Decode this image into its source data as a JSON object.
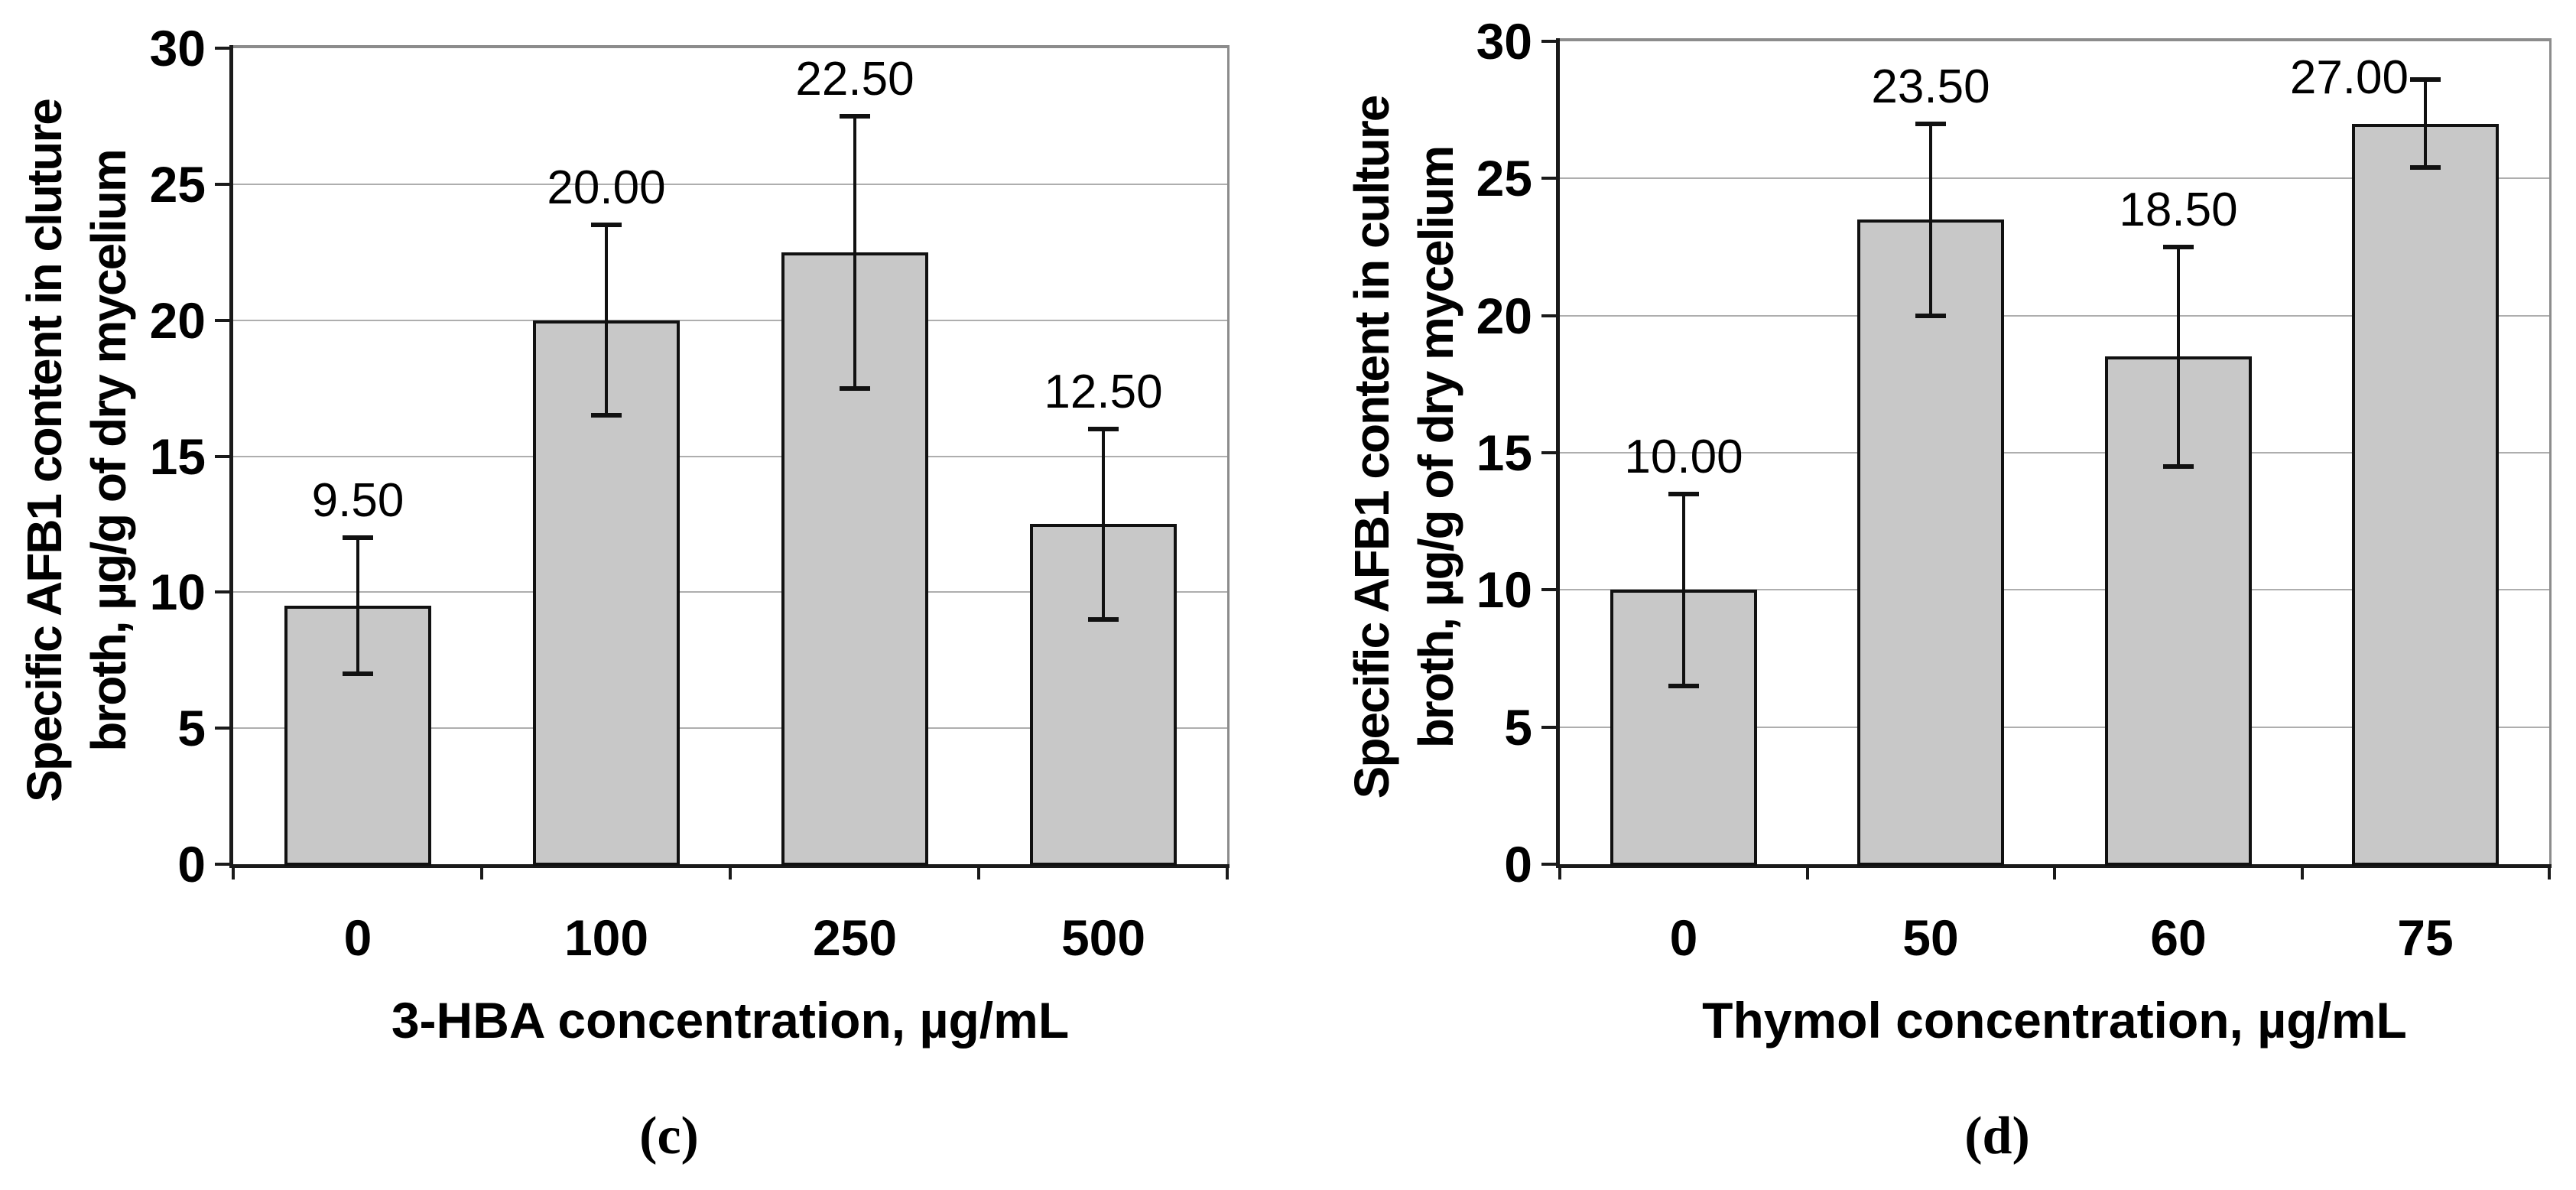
{
  "figure": {
    "background": "#ffffff"
  },
  "colors": {
    "bar_fill": "#c8c8c8",
    "bar_border": "#111111",
    "axis": "#1a1a1a",
    "gridline": "#aeaeae",
    "plot_border": "#8c8c8c",
    "text": "#000000"
  },
  "chart_data": [
    {
      "type": "bar",
      "panel_caption": "(c)",
      "title": "",
      "categories": [
        "0",
        "100",
        "250",
        "500"
      ],
      "values": [
        9.5,
        20.0,
        22.5,
        12.5
      ],
      "data_labels": [
        "9.50",
        "20.00",
        "22.50",
        "12.50"
      ],
      "error_bars": [
        2.5,
        3.5,
        5.0,
        3.5
      ],
      "label_placement": [
        "above",
        "above",
        "above",
        "above"
      ],
      "xlabel": "3-HBA concentration, µg/mL",
      "ylabel_line1": "Specific AFB1 content in cluture",
      "ylabel_line2": "broth, µg/g of dry mycelium",
      "ylim": [
        0,
        30
      ],
      "ytick_step": 5,
      "yticks": [
        "0",
        "5",
        "10",
        "15",
        "20",
        "25",
        "30"
      ],
      "grid": "horizontal",
      "legend": "none"
    },
    {
      "type": "bar",
      "panel_caption": "(d)",
      "title": "",
      "categories": [
        "0",
        "50",
        "60",
        "75"
      ],
      "values": [
        10.0,
        23.5,
        18.5,
        27.0
      ],
      "data_labels": [
        "10.00",
        "23.50",
        "18.50",
        "27.00"
      ],
      "error_bars": [
        3.5,
        3.5,
        4.0,
        1.6
      ],
      "label_placement": [
        "above",
        "above",
        "above",
        "left-of-cap"
      ],
      "xlabel": "Thymol concentration, µg/mL",
      "ylabel_line1": "Specific AFB1 content in culture",
      "ylabel_line2": "broth, µg/g of dry mycelium",
      "ylim": [
        0,
        30
      ],
      "ytick_step": 5,
      "yticks": [
        "0",
        "5",
        "10",
        "15",
        "20",
        "25",
        "30"
      ],
      "grid": "horizontal",
      "legend": "none"
    }
  ]
}
